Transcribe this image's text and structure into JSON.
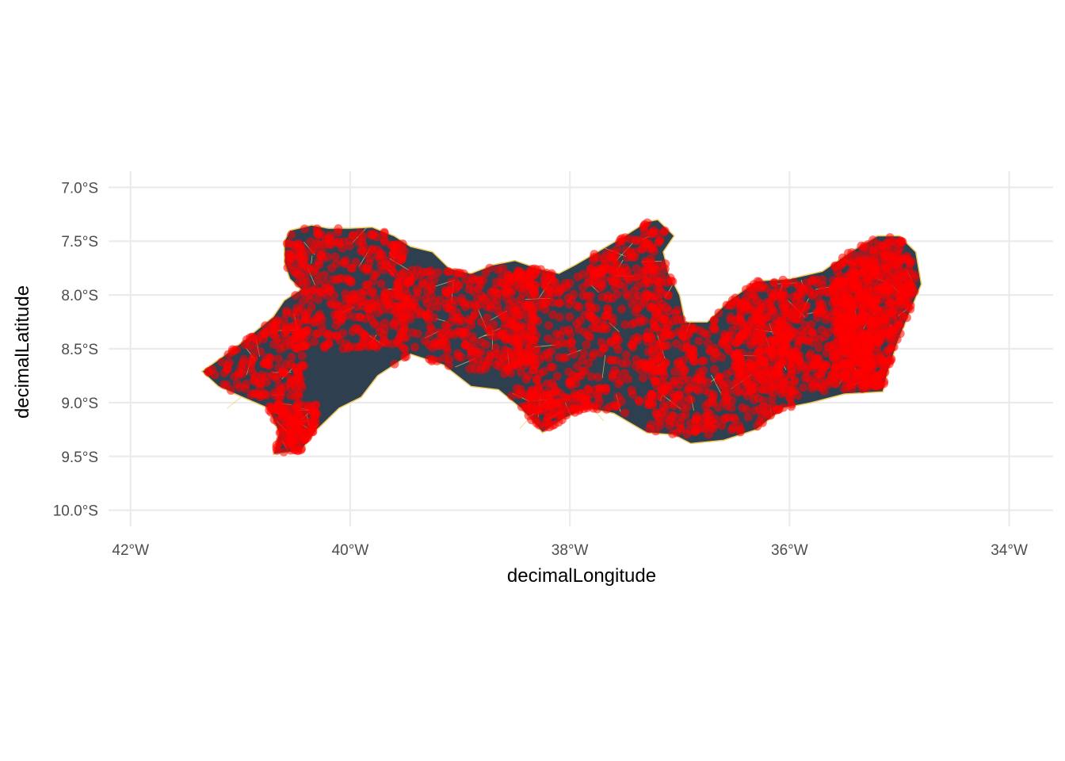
{
  "chart_data": {
    "type": "scatter",
    "subtype": "map-points-over-polygon",
    "xlabel": "decimalLongitude",
    "ylabel": "decimalLatitude",
    "xlim": [
      -42.2,
      -33.6
    ],
    "ylim": [
      -10.15,
      -6.85
    ],
    "x_ticks": [
      {
        "value": -42,
        "label": "42°W"
      },
      {
        "value": -40,
        "label": "40°W"
      },
      {
        "value": -38,
        "label": "38°W"
      },
      {
        "value": -36,
        "label": "36°W"
      },
      {
        "value": -34,
        "label": "34°W"
      }
    ],
    "y_ticks": [
      {
        "value": -7.0,
        "label": "7.0°S"
      },
      {
        "value": -7.5,
        "label": "7.5°S"
      },
      {
        "value": -8.0,
        "label": "8.0°S"
      },
      {
        "value": -8.5,
        "label": "8.5°S"
      },
      {
        "value": -9.0,
        "label": "9.0°S"
      },
      {
        "value": -9.5,
        "label": "9.5°S"
      },
      {
        "value": -10.0,
        "label": "10.0°S"
      }
    ],
    "grid": true,
    "legend": "none",
    "colors": {
      "region_fill": "#2e3f50",
      "region_border": "#f0c85a",
      "points": "#ff0000",
      "grid": "#ebebeb"
    },
    "region_outline": [
      [
        -41.35,
        -8.71
      ],
      [
        -41.2,
        -8.6
      ],
      [
        -41.0,
        -8.45
      ],
      [
        -40.82,
        -8.3
      ],
      [
        -40.7,
        -8.2
      ],
      [
        -40.6,
        -8.05
      ],
      [
        -40.45,
        -7.95
      ],
      [
        -40.55,
        -7.85
      ],
      [
        -40.6,
        -7.7
      ],
      [
        -40.6,
        -7.5
      ],
      [
        -40.55,
        -7.4
      ],
      [
        -40.35,
        -7.35
      ],
      [
        -40.2,
        -7.38
      ],
      [
        -40.0,
        -7.38
      ],
      [
        -39.8,
        -7.37
      ],
      [
        -39.6,
        -7.45
      ],
      [
        -39.45,
        -7.55
      ],
      [
        -39.25,
        -7.6
      ],
      [
        -39.1,
        -7.75
      ],
      [
        -38.9,
        -7.8
      ],
      [
        -38.7,
        -7.72
      ],
      [
        -38.5,
        -7.68
      ],
      [
        -38.3,
        -7.75
      ],
      [
        -38.1,
        -7.8
      ],
      [
        -37.95,
        -7.72
      ],
      [
        -37.75,
        -7.6
      ],
      [
        -37.5,
        -7.45
      ],
      [
        -37.3,
        -7.32
      ],
      [
        -37.2,
        -7.3
      ],
      [
        -37.05,
        -7.45
      ],
      [
        -37.15,
        -7.6
      ],
      [
        -37.1,
        -7.8
      ],
      [
        -37.0,
        -8.0
      ],
      [
        -36.95,
        -8.25
      ],
      [
        -36.75,
        -8.25
      ],
      [
        -36.55,
        -8.05
      ],
      [
        -36.3,
        -7.87
      ],
      [
        -36.0,
        -7.85
      ],
      [
        -35.7,
        -7.78
      ],
      [
        -35.45,
        -7.6
      ],
      [
        -35.2,
        -7.45
      ],
      [
        -35.0,
        -7.45
      ],
      [
        -34.85,
        -7.6
      ],
      [
        -34.8,
        -7.9
      ],
      [
        -34.92,
        -8.2
      ],
      [
        -35.02,
        -8.45
      ],
      [
        -35.1,
        -8.7
      ],
      [
        -35.15,
        -8.9
      ],
      [
        -35.5,
        -8.92
      ],
      [
        -35.8,
        -9.0
      ],
      [
        -36.05,
        -9.05
      ],
      [
        -36.3,
        -9.25
      ],
      [
        -36.6,
        -9.35
      ],
      [
        -36.9,
        -9.38
      ],
      [
        -37.05,
        -9.3
      ],
      [
        -37.3,
        -9.28
      ],
      [
        -37.6,
        -9.1
      ],
      [
        -37.85,
        -9.05
      ],
      [
        -38.05,
        -9.15
      ],
      [
        -38.25,
        -9.28
      ],
      [
        -38.45,
        -9.05
      ],
      [
        -38.65,
        -8.88
      ],
      [
        -38.9,
        -8.85
      ],
      [
        -39.15,
        -8.65
      ],
      [
        -39.45,
        -8.55
      ],
      [
        -39.75,
        -8.75
      ],
      [
        -39.9,
        -8.95
      ],
      [
        -40.1,
        -9.05
      ],
      [
        -40.3,
        -9.25
      ],
      [
        -40.45,
        -9.45
      ],
      [
        -40.7,
        -9.48
      ],
      [
        -40.65,
        -9.28
      ],
      [
        -40.75,
        -9.05
      ],
      [
        -40.98,
        -8.95
      ],
      [
        -41.2,
        -8.85
      ],
      [
        -41.35,
        -8.71
      ]
    ],
    "point_bands": [
      {
        "lon": [
          -41.3,
          -40.4
        ],
        "lat": [
          -8.95,
          -8.2
        ],
        "count": 160
      },
      {
        "lon": [
          -40.75,
          -40.3
        ],
        "lat": [
          -9.48,
          -9.0
        ],
        "count": 130
      },
      {
        "lon": [
          -40.6,
          -39.5
        ],
        "lat": [
          -8.5,
          -7.38
        ],
        "count": 360
      },
      {
        "lon": [
          -39.6,
          -38.3
        ],
        "lat": [
          -8.7,
          -7.75
        ],
        "count": 360
      },
      {
        "lon": [
          -38.6,
          -37.1
        ],
        "lat": [
          -9.1,
          -7.75
        ],
        "count": 420
      },
      {
        "lon": [
          -38.4,
          -37.8
        ],
        "lat": [
          -9.28,
          -8.9
        ],
        "count": 80
      },
      {
        "lon": [
          -37.8,
          -37.0
        ],
        "lat": [
          -7.9,
          -7.3
        ],
        "count": 110
      },
      {
        "lon": [
          -37.3,
          -35.9
        ],
        "lat": [
          -9.3,
          -8.0
        ],
        "count": 440
      },
      {
        "lon": [
          -36.5,
          -35.2
        ],
        "lat": [
          -8.9,
          -7.85
        ],
        "count": 480
      },
      {
        "lon": [
          -35.6,
          -34.85
        ],
        "lat": [
          -8.85,
          -7.45
        ],
        "count": 560
      }
    ]
  }
}
